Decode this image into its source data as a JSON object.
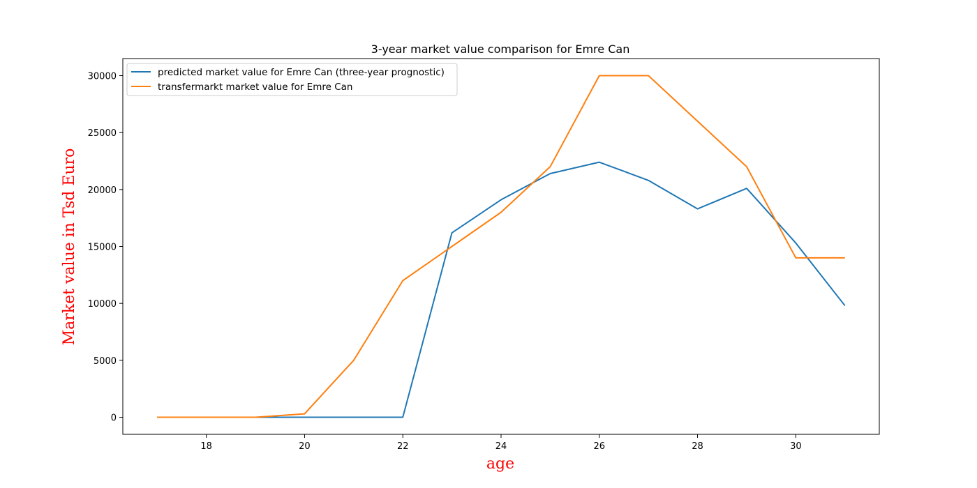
{
  "chart_data": {
    "type": "line",
    "title": "3-year market value comparison for Emre Can",
    "xlabel": "age",
    "ylabel": "Market value in Tsd Euro",
    "xlim": [
      16.3,
      31.7
    ],
    "ylim": [
      -1500,
      31500
    ],
    "xticks": [
      18,
      20,
      22,
      24,
      26,
      28,
      30
    ],
    "yticks": [
      0,
      5000,
      10000,
      15000,
      20000,
      25000,
      30000
    ],
    "grid": false,
    "legend_position": "upper-left",
    "x": [
      17,
      18,
      19,
      20,
      21,
      22,
      23,
      24,
      25,
      26,
      27,
      28,
      29,
      30,
      31
    ],
    "series": [
      {
        "name": "predicted market value for Emre Can (three-year prognostic)",
        "color": "#1f77b4",
        "values": [
          0,
          0,
          0,
          0,
          0,
          0,
          16200,
          19100,
          21400,
          22400,
          20800,
          18300,
          20100,
          15300,
          9800
        ]
      },
      {
        "name": "transfermarkt market value for Emre Can",
        "color": "#ff7f0e",
        "values": [
          0,
          0,
          0,
          300,
          5000,
          12000,
          15000,
          18000,
          22000,
          30000,
          30000,
          26000,
          22000,
          14000,
          14000
        ]
      }
    ]
  }
}
